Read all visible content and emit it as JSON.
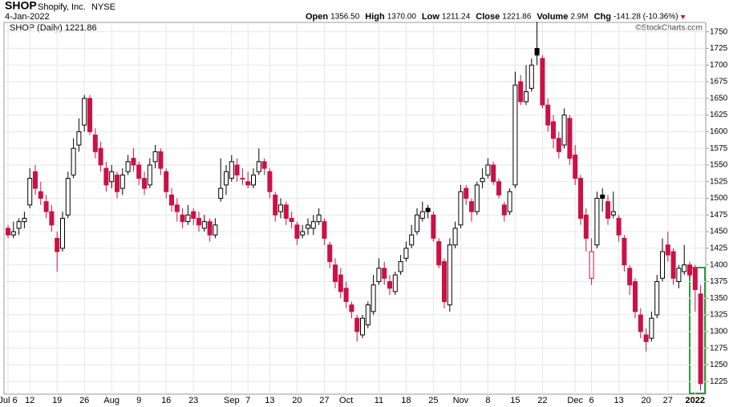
{
  "header": {
    "symbol": "SHOP",
    "name": "Shopify, Inc.",
    "exchange": "NYSE",
    "date": "4-Jan-2022",
    "stats": [
      {
        "label": "Open",
        "value": "1356.50"
      },
      {
        "label": "High",
        "value": "1370.00"
      },
      {
        "label": "Low",
        "value": "1211.24"
      },
      {
        "label": "Close",
        "value": "1221.86"
      },
      {
        "label": "Volume",
        "value": "2.9M"
      },
      {
        "label": "Chg",
        "value": "-141.28 (-10.36%)"
      }
    ],
    "copyright": "©StockCharts.com"
  },
  "chart_data": {
    "type": "candlestick",
    "legend": "SHOP (Daily) 1221.86",
    "up_color": "#000000",
    "down_color": "#cc1144",
    "grid": true,
    "ylim": [
      1206,
      1764
    ],
    "yticks": [
      1225,
      1250,
      1275,
      1300,
      1325,
      1350,
      1375,
      1400,
      1425,
      1450,
      1475,
      1500,
      1525,
      1550,
      1575,
      1600,
      1625,
      1650,
      1675,
      1700,
      1725,
      1750
    ],
    "categories": [
      "Jul 6",
      null,
      null,
      null,
      "12",
      null,
      null,
      null,
      null,
      "19",
      null,
      null,
      null,
      null,
      "26",
      null,
      null,
      null,
      null,
      "Aug",
      null,
      null,
      null,
      null,
      "9",
      null,
      null,
      null,
      null,
      "16",
      null,
      null,
      null,
      null,
      "23",
      null,
      null,
      null,
      null,
      null,
      null,
      "Sep",
      null,
      null,
      "7",
      null,
      null,
      null,
      "13",
      null,
      null,
      null,
      null,
      "20",
      null,
      null,
      null,
      null,
      "27",
      null,
      null,
      null,
      "Oct",
      null,
      null,
      null,
      null,
      null,
      "11",
      null,
      null,
      null,
      null,
      "18",
      null,
      null,
      null,
      null,
      "25",
      null,
      null,
      null,
      null,
      "Nov",
      null,
      null,
      null,
      null,
      "8",
      null,
      null,
      null,
      null,
      "15",
      null,
      null,
      null,
      null,
      "22",
      null,
      null,
      null,
      null,
      null,
      "Dec",
      null,
      null,
      "6",
      null,
      null,
      null,
      null,
      "13",
      null,
      null,
      null,
      null,
      "20",
      null,
      null,
      null,
      "27",
      null,
      null,
      null,
      null,
      "2022",
      null
    ],
    "open": [
      1455,
      1445,
      1455,
      1465,
      1490,
      1540,
      1510,
      1495,
      1480,
      1440,
      1425,
      1475,
      1535,
      1580,
      1610,
      1650,
      1595,
      1575,
      1545,
      1525,
      1535,
      1515,
      1540,
      1560,
      1550,
      1530,
      1520,
      1555,
      1570,
      1540,
      1505,
      1490,
      1475,
      1465,
      1480,
      1470,
      1455,
      1465,
      1445,
      1500,
      1520,
      1530,
      1550,
      1530,
      1525,
      1520,
      1540,
      1555,
      1540,
      1505,
      1480,
      1490,
      1470,
      1460,
      1445,
      1455,
      1455,
      1465,
      1465,
      1430,
      1400,
      1385,
      1365,
      1340,
      1320,
      1295,
      1310,
      1330,
      1375,
      1395,
      1375,
      1360,
      1390,
      1410,
      1430,
      1450,
      1470,
      1485,
      1475,
      1435,
      1405,
      1340,
      1430,
      1460,
      1515,
      1495,
      1480,
      1525,
      1535,
      1550,
      1525,
      1490,
      1480,
      1520,
      1675,
      1645,
      1665,
      1725,
      1710,
      1640,
      1615,
      1590,
      1580,
      1620,
      1565,
      1530,
      1475,
      1380,
      1430,
      1505,
      1495,
      1475,
      1470,
      1440,
      1395,
      1375,
      1325,
      1295,
      1290,
      1325,
      1380,
      1430,
      1420,
      1375,
      1390,
      1400,
      1395,
      1356.5
    ],
    "high": [
      1460,
      1465,
      1470,
      1480,
      1545,
      1550,
      1525,
      1505,
      1490,
      1450,
      1480,
      1540,
      1590,
      1620,
      1655,
      1655,
      1605,
      1585,
      1555,
      1550,
      1540,
      1545,
      1565,
      1575,
      1555,
      1540,
      1560,
      1580,
      1575,
      1545,
      1515,
      1500,
      1485,
      1490,
      1485,
      1480,
      1475,
      1470,
      1470,
      1560,
      1550,
      1565,
      1560,
      1545,
      1540,
      1545,
      1575,
      1560,
      1545,
      1510,
      1500,
      1495,
      1480,
      1465,
      1460,
      1470,
      1475,
      1485,
      1470,
      1435,
      1410,
      1395,
      1375,
      1345,
      1325,
      1325,
      1345,
      1385,
      1410,
      1405,
      1385,
      1390,
      1415,
      1435,
      1460,
      1485,
      1495,
      1490,
      1480,
      1440,
      1410,
      1440,
      1465,
      1520,
      1520,
      1500,
      1525,
      1545,
      1560,
      1555,
      1530,
      1495,
      1515,
      1690,
      1685,
      1700,
      1710,
      1765,
      1715,
      1650,
      1625,
      1600,
      1635,
      1625,
      1580,
      1535,
      1485,
      1440,
      1510,
      1515,
      1505,
      1510,
      1475,
      1445,
      1400,
      1380,
      1335,
      1305,
      1330,
      1385,
      1440,
      1450,
      1425,
      1400,
      1430,
      1405,
      1400,
      1370
    ],
    "low": [
      1440,
      1440,
      1445,
      1455,
      1485,
      1505,
      1490,
      1470,
      1450,
      1390,
      1420,
      1470,
      1530,
      1570,
      1600,
      1595,
      1560,
      1540,
      1510,
      1515,
      1500,
      1505,
      1535,
      1540,
      1520,
      1505,
      1515,
      1545,
      1535,
      1500,
      1480,
      1465,
      1455,
      1460,
      1460,
      1450,
      1450,
      1435,
      1440,
      1495,
      1505,
      1525,
      1525,
      1520,
      1515,
      1515,
      1535,
      1535,
      1500,
      1465,
      1470,
      1460,
      1455,
      1430,
      1440,
      1445,
      1445,
      1460,
      1430,
      1395,
      1365,
      1350,
      1335,
      1320,
      1285,
      1290,
      1305,
      1325,
      1370,
      1370,
      1355,
      1355,
      1385,
      1405,
      1425,
      1445,
      1465,
      1470,
      1435,
      1395,
      1335,
      1330,
      1425,
      1455,
      1490,
      1465,
      1475,
      1515,
      1530,
      1520,
      1500,
      1465,
      1475,
      1515,
      1640,
      1640,
      1660,
      1700,
      1635,
      1600,
      1575,
      1560,
      1575,
      1550,
      1520,
      1460,
      1420,
      1370,
      1425,
      1480,
      1460,
      1470,
      1435,
      1390,
      1355,
      1320,
      1290,
      1270,
      1285,
      1320,
      1375,
      1405,
      1370,
      1365,
      1385,
      1380,
      1330,
      1211.24
    ],
    "close": [
      1445,
      1450,
      1465,
      1470,
      1530,
      1515,
      1500,
      1480,
      1460,
      1420,
      1470,
      1530,
      1575,
      1600,
      1650,
      1600,
      1570,
      1550,
      1520,
      1540,
      1510,
      1535,
      1555,
      1550,
      1530,
      1515,
      1550,
      1570,
      1545,
      1510,
      1490,
      1480,
      1465,
      1475,
      1470,
      1460,
      1465,
      1445,
      1460,
      1515,
      1540,
      1555,
      1535,
      1530,
      1520,
      1535,
      1555,
      1545,
      1510,
      1475,
      1490,
      1470,
      1465,
      1440,
      1450,
      1460,
      1465,
      1475,
      1440,
      1405,
      1375,
      1360,
      1345,
      1330,
      1300,
      1320,
      1340,
      1370,
      1395,
      1380,
      1365,
      1385,
      1405,
      1425,
      1445,
      1475,
      1480,
      1480,
      1440,
      1400,
      1345,
      1430,
      1455,
      1510,
      1500,
      1480,
      1520,
      1530,
      1550,
      1525,
      1505,
      1475,
      1510,
      1670,
      1645,
      1660,
      1700,
      1715,
      1640,
      1610,
      1590,
      1570,
      1625,
      1560,
      1530,
      1470,
      1440,
      1420,
      1500,
      1500,
      1470,
      1480,
      1445,
      1400,
      1370,
      1330,
      1300,
      1285,
      1320,
      1375,
      1420,
      1415,
      1380,
      1395,
      1400,
      1385,
      1363,
      1221.86
    ]
  }
}
